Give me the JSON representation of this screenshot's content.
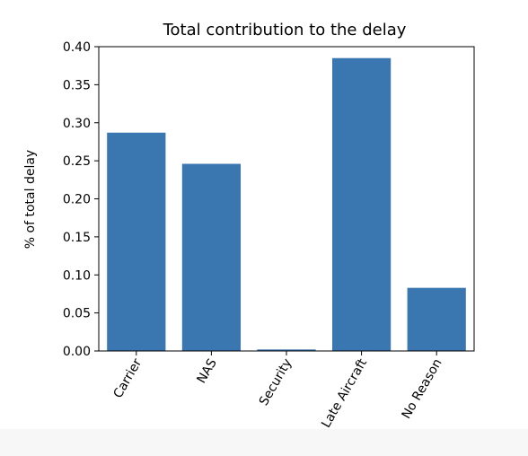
{
  "chart_data": {
    "type": "bar",
    "title": "Total contribution to the delay",
    "xlabel": "",
    "ylabel": "% of total delay",
    "categories": [
      "Carrier",
      "NAS",
      "Security",
      "Late Aircraft",
      "No Reason"
    ],
    "values": [
      0.287,
      0.246,
      0.002,
      0.385,
      0.083
    ],
    "ylim": [
      0,
      0.4
    ],
    "yticks": [
      "0.00",
      "0.05",
      "0.10",
      "0.15",
      "0.20",
      "0.25",
      "0.30",
      "0.35",
      "0.40"
    ],
    "bar_color": "#3a76af",
    "grid": false,
    "legend": "none",
    "xtick_rotation_deg": -60
  }
}
